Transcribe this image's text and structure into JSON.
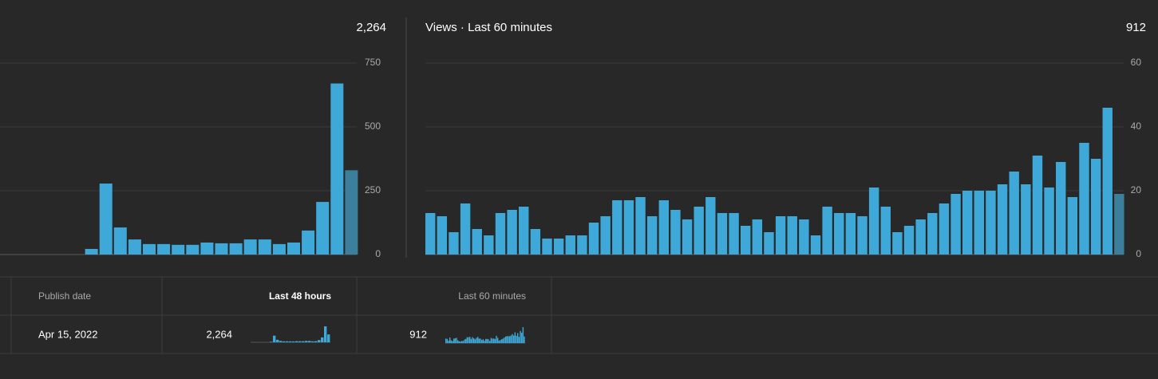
{
  "charts": [
    {
      "type": "bar",
      "total": "2,264",
      "color": "#3ea9d8",
      "last_color": "#3b7f9c",
      "values": [
        0,
        0,
        0,
        0,
        0,
        0,
        22,
        278,
        106,
        59,
        41,
        41,
        38,
        38,
        47,
        44,
        44,
        59,
        59,
        41,
        47,
        94,
        206,
        670,
        330
      ],
      "ylim": [
        0,
        750
      ],
      "yticks": [
        0,
        250,
        500,
        750
      ],
      "grid": true
    },
    {
      "type": "bar",
      "title": "Views · Last 60 minutes",
      "total": "912",
      "color": "#3ea9d8",
      "last_color": "#3b7f9c",
      "values": [
        13,
        12,
        7,
        16,
        8,
        6,
        13,
        14,
        15,
        8,
        5,
        5,
        6,
        6,
        10,
        12,
        17,
        17,
        18,
        12,
        17,
        14,
        11,
        15,
        18,
        13,
        13,
        9,
        11,
        7,
        12,
        12,
        11,
        6,
        15,
        13,
        13,
        12,
        21,
        15,
        7,
        9,
        11,
        13,
        16,
        19,
        20,
        20,
        20,
        22,
        26,
        22,
        31,
        21,
        29,
        18,
        35,
        30,
        46,
        19
      ],
      "ylim": [
        0,
        60
      ],
      "yticks": [
        0,
        20,
        40,
        60
      ],
      "grid": true
    }
  ],
  "table": {
    "headers": [
      "Publish date",
      "Last 48 hours",
      "Last 60 minutes"
    ],
    "rows": [
      [
        "Apr 15, 2022",
        "2,264",
        "912"
      ]
    ]
  }
}
